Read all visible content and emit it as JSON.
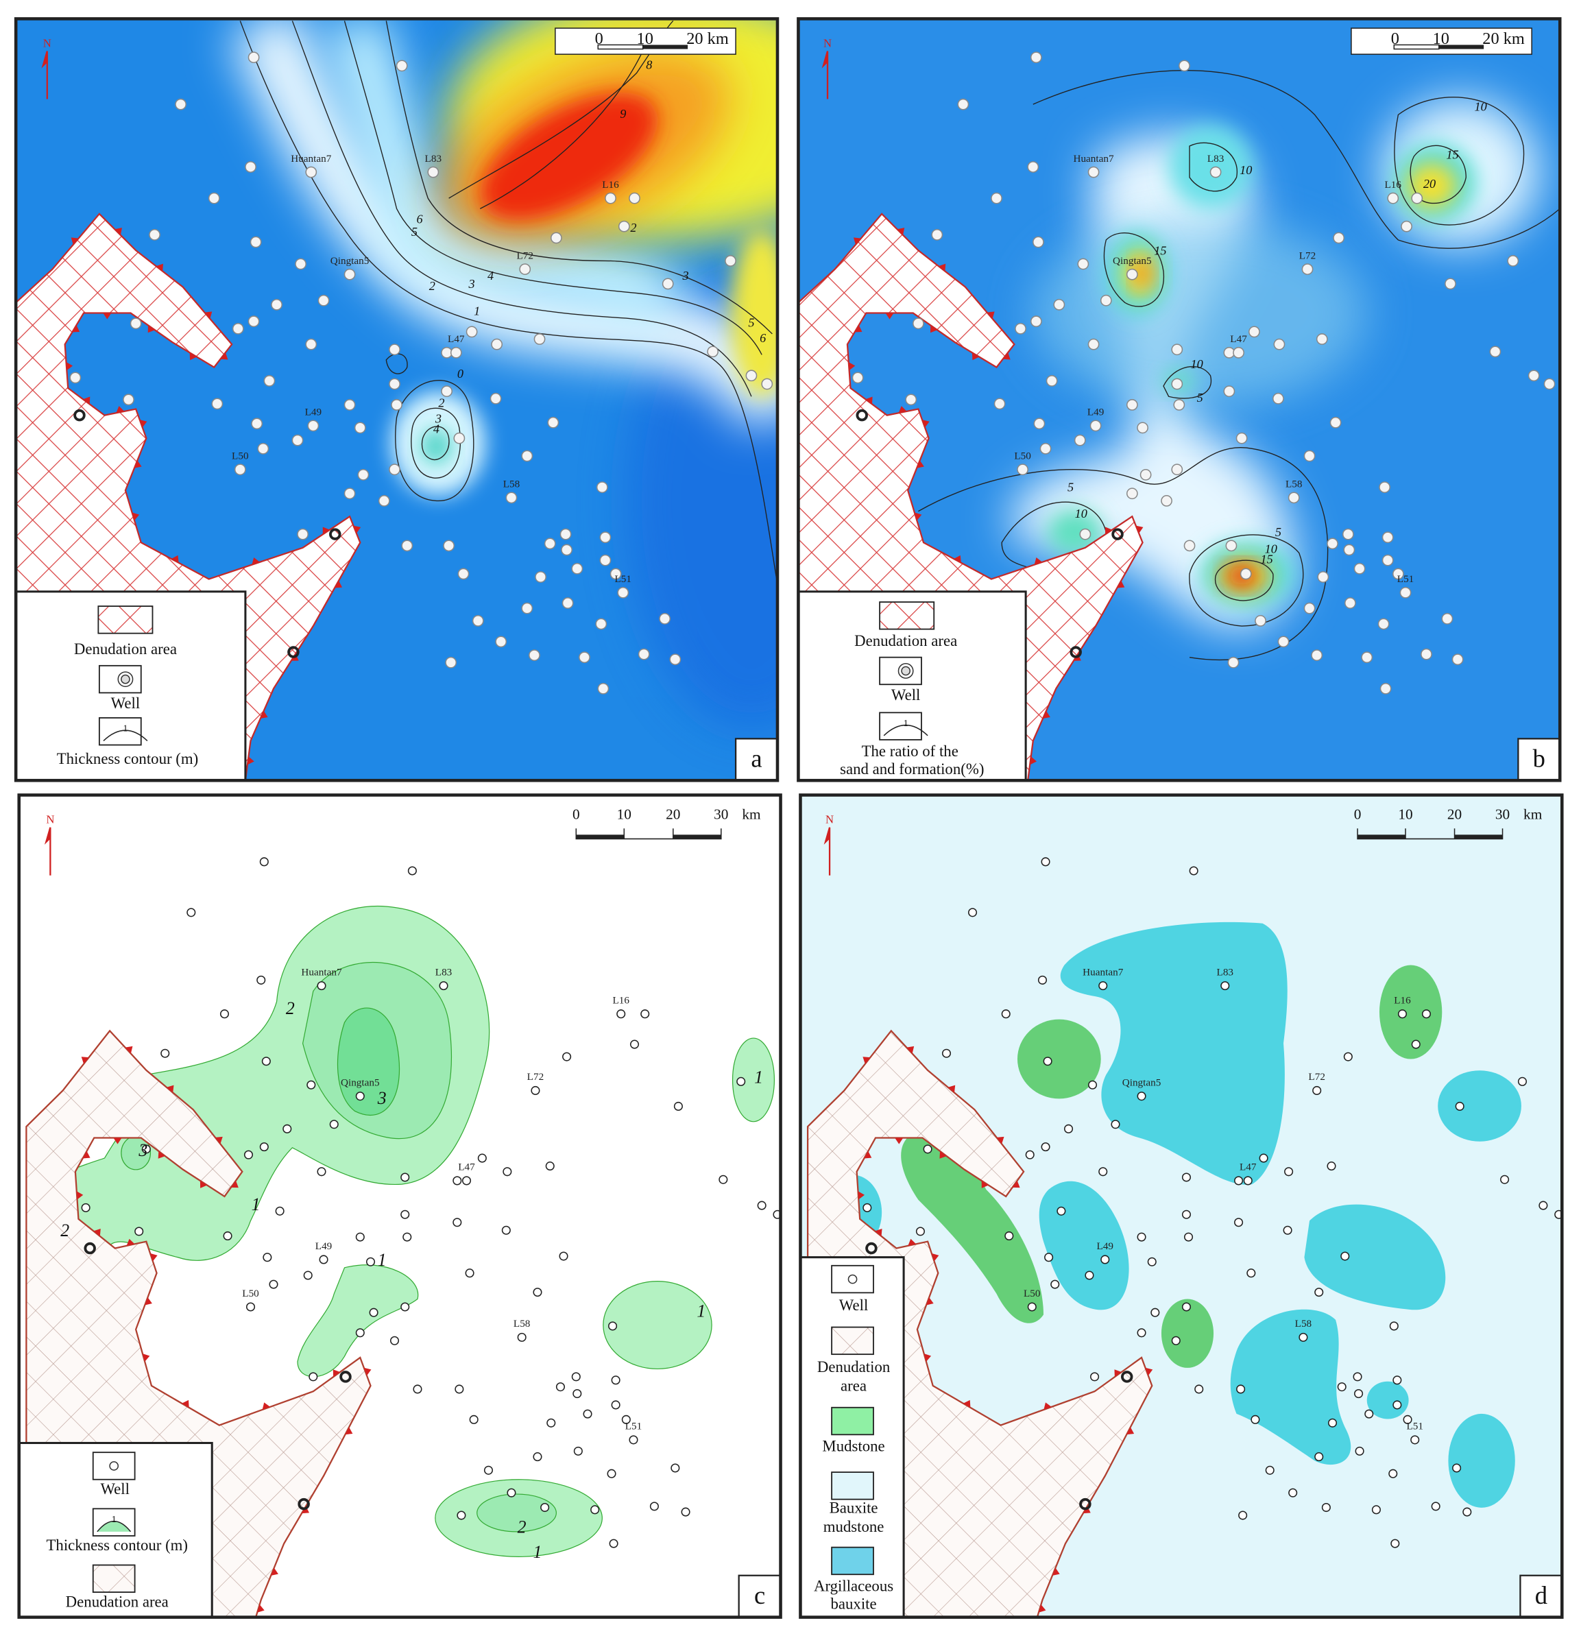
{
  "panels": [
    {
      "letter": "a",
      "north": "N",
      "scale": [
        "0",
        "10",
        "20 km"
      ],
      "legend": {
        "items": [
          "Denudation area",
          "Well",
          "Thickness contour (m)"
        ],
        "symbol_label": "1"
      },
      "wells": [
        "Huantan7",
        "L83",
        "L16",
        "Qingtan5",
        "L72",
        "L47",
        "L49",
        "L50",
        "L58",
        "L51"
      ],
      "contour_labels": [
        "1",
        "2",
        "3",
        "4",
        "5",
        "6",
        "8",
        "9",
        "2",
        "3",
        "5",
        "6",
        "0",
        "2",
        "3",
        "4"
      ]
    },
    {
      "letter": "b",
      "north": "N",
      "scale": [
        "0",
        "10",
        "20 km"
      ],
      "legend": {
        "items": [
          "Denudation area",
          "Well",
          "The ratio of the",
          "sand and formation(%)"
        ],
        "symbol_label": "1"
      },
      "wells": [
        "Huantan7",
        "L83",
        "L16",
        "Qingtan5",
        "L72",
        "L47",
        "L49",
        "L50",
        "L58",
        "L51"
      ],
      "contour_labels": [
        "10",
        "15",
        "20",
        "10",
        "5",
        "5",
        "10",
        "5",
        "10",
        "15",
        "10",
        "15"
      ]
    },
    {
      "letter": "c",
      "north": "N",
      "scale": [
        "0",
        "10",
        "20",
        "30",
        "km"
      ],
      "legend": {
        "items": [
          "Well",
          "Thickness contour (m)",
          "Denudation area"
        ],
        "symbol_label": "1"
      },
      "wells": [
        "Huantan7",
        "L83",
        "L16",
        "Qingtan5",
        "L72",
        "L47",
        "L49",
        "L50",
        "L58",
        "L51"
      ],
      "contour_labels": [
        "2",
        "3",
        "3",
        "1",
        "2",
        "1",
        "1",
        "1",
        "2",
        "1"
      ]
    },
    {
      "letter": "d",
      "north": "N",
      "scale": [
        "0",
        "10",
        "20",
        "30",
        "km"
      ],
      "legend": {
        "items": [
          "Well",
          "Denudation",
          "area",
          "Mudstone",
          "Bauxite",
          "mudstone",
          "Argillaceous",
          "bauxite"
        ]
      },
      "wells": [
        "Huantan7",
        "L83",
        "L16",
        "Qingtan5",
        "L72",
        "L47",
        "L49",
        "L50",
        "L58",
        "L51"
      ]
    }
  ]
}
